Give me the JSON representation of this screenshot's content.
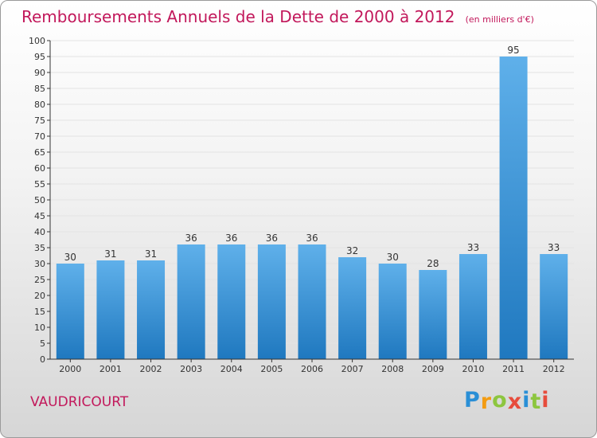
{
  "title": "Remboursements Annuels de la Dette de 2000 à 2012",
  "unit_note": "(en milliers d'€)",
  "city": "VAUDRICOURT",
  "brand": {
    "letters": [
      "P",
      "r",
      "o",
      "x",
      "i",
      "t",
      "i"
    ],
    "colors": [
      "#2a8fd6",
      "#f39c12",
      "#8dc63f",
      "#e74c3c",
      "#2a8fd6",
      "#8dc63f",
      "#e74c3c"
    ]
  },
  "colors": {
    "title": "#c2185b",
    "bar_top": "#5fb0ea",
    "bar_bottom": "#1f78bf",
    "axis": "#333333",
    "grid": "#e3e3e3"
  },
  "chart_data": {
    "type": "bar",
    "title": "Remboursements Annuels de la Dette de 2000 à 2012",
    "xlabel": "",
    "ylabel": "en milliers d'€",
    "categories": [
      "2000",
      "2001",
      "2002",
      "2003",
      "2004",
      "2005",
      "2006",
      "2007",
      "2008",
      "2009",
      "2010",
      "2011",
      "2012"
    ],
    "values": [
      30,
      31,
      31,
      36,
      36,
      36,
      36,
      32,
      30,
      28,
      33,
      95,
      33
    ],
    "ylim": [
      0,
      100
    ],
    "ytick_step": 5,
    "grid": true
  }
}
